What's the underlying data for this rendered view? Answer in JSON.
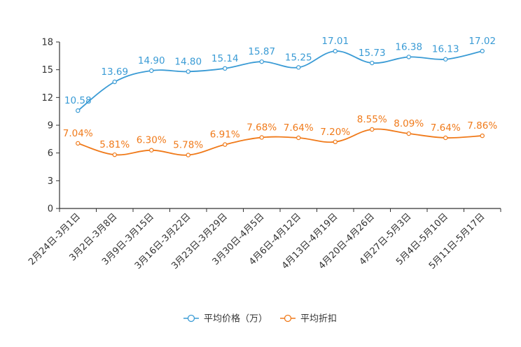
{
  "chart_data": {
    "type": "line",
    "title": "",
    "xlabel": "",
    "ylabel": "",
    "ylim": [
      0,
      18
    ],
    "yticks": [
      "0",
      "3",
      "6",
      "9",
      "12",
      "15",
      "18"
    ],
    "categories": [
      "2月24日-3月1日",
      "3月2日-3月8日",
      "3月9日-3月15日",
      "3月16日-3月22日",
      "3月23日-3月29日",
      "3月30日-4月5日",
      "4月6日-4月12日",
      "4月13日-4月19日",
      "4月20日-4月26日",
      "4月27日-5月3日",
      "5月4日-5月10日",
      "5月11日-5月17日"
    ],
    "series": [
      {
        "name": "平均价格（万）",
        "color": "#3a9bd5",
        "values": [
          10.58,
          13.69,
          14.9,
          14.8,
          15.14,
          15.87,
          15.25,
          17.01,
          15.73,
          16.38,
          16.13,
          17.02
        ],
        "labels": [
          "10.58",
          "13.69",
          "14.90",
          "14.80",
          "15.14",
          "15.87",
          "15.25",
          "17.01",
          "15.73",
          "16.38",
          "16.13",
          "17.02"
        ]
      },
      {
        "name": "平均折扣",
        "color": "#f07a1a",
        "values": [
          7.04,
          5.81,
          6.3,
          5.78,
          6.91,
          7.68,
          7.64,
          7.2,
          8.55,
          8.09,
          7.64,
          7.86
        ],
        "labels": [
          "7.04%",
          "5.81%",
          "6.30%",
          "5.78%",
          "6.91%",
          "7.68%",
          "7.64%",
          "7.20%",
          "8.55%",
          "8.09%",
          "7.64%",
          "7.86%"
        ]
      }
    ],
    "legend_position": "bottom-center",
    "grid": false
  }
}
